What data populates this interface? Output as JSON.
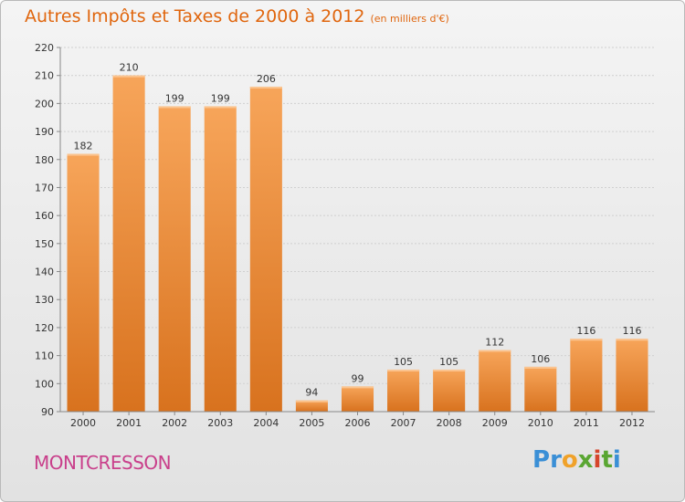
{
  "header": {
    "title": "Autres Impôts et Taxes de 2000 à 2012",
    "subtitle": "(en milliers d'€)"
  },
  "footer": {
    "location": "MONTCRESSON",
    "logo": "Proxiti"
  },
  "colors": {
    "bar_light": "#f7a55a",
    "bar_dark": "#d8721e",
    "title": "#e0660e",
    "location": "#c93f8b"
  },
  "chart_data": {
    "type": "bar",
    "title": "Autres Impôts et Taxes de 2000 à 2012",
    "subtitle": "(en milliers d'€)",
    "categories": [
      "2000",
      "2001",
      "2002",
      "2003",
      "2004",
      "2005",
      "2006",
      "2007",
      "2008",
      "2009",
      "2010",
      "2011",
      "2012"
    ],
    "values": [
      182,
      210,
      199,
      199,
      206,
      94,
      99,
      105,
      105,
      112,
      106,
      116,
      116
    ],
    "ylim": [
      90,
      220
    ],
    "yticks": [
      90,
      100,
      110,
      120,
      130,
      140,
      150,
      160,
      170,
      180,
      190,
      200,
      210,
      220
    ],
    "grid": true,
    "data_labels": true
  }
}
